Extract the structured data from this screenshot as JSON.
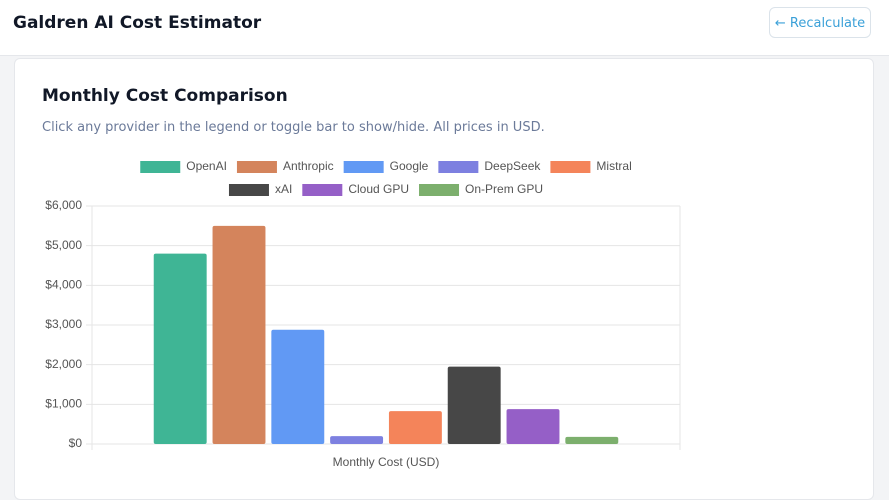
{
  "header": {
    "title": "Galdren AI Cost Estimator",
    "button": "← Recalculate"
  },
  "card": {
    "title": "Monthly Cost Comparison",
    "subtitle": "Click any provider in the legend or toggle bar to show/hide. All prices in USD."
  },
  "chart_data": {
    "type": "bar",
    "categories": [
      "Monthly Cost (USD)"
    ],
    "series": [
      {
        "name": "OpenAI",
        "color": "#3fb595",
        "values": [
          4800
        ]
      },
      {
        "name": "Anthropic",
        "color": "#d4845c",
        "values": [
          5500
        ]
      },
      {
        "name": "Google",
        "color": "#6199f4",
        "values": [
          2880
        ]
      },
      {
        "name": "DeepSeek",
        "color": "#7d80e0",
        "values": [
          200
        ]
      },
      {
        "name": "Mistral",
        "color": "#f4845a",
        "values": [
          830
        ]
      },
      {
        "name": "xAI",
        "color": "#474747",
        "values": [
          1950
        ]
      },
      {
        "name": "Cloud GPU",
        "color": "#955fc7",
        "values": [
          880
        ]
      },
      {
        "name": "On-Prem GPU",
        "color": "#7caf6d",
        "values": [
          180
        ]
      }
    ],
    "ylim": [
      0,
      6000
    ],
    "yticks": [
      {
        "value": 0,
        "label": "$0"
      },
      {
        "value": 1000,
        "label": "$1,000"
      },
      {
        "value": 2000,
        "label": "$2,000"
      },
      {
        "value": 3000,
        "label": "$3,000"
      },
      {
        "value": 4000,
        "label": "$4,000"
      },
      {
        "value": 5000,
        "label": "$5,000"
      },
      {
        "value": 6000,
        "label": "$6,000"
      }
    ],
    "grid": true,
    "legend": "top"
  }
}
